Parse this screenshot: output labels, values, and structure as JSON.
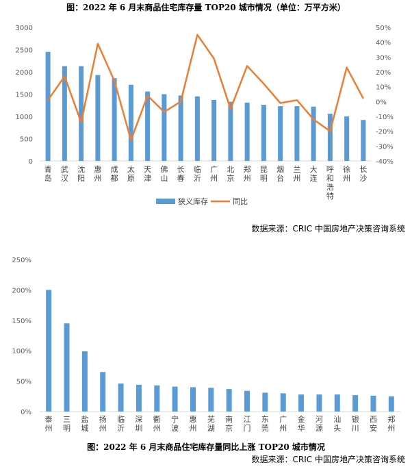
{
  "chart1": {
    "title": "图：2022 年 6 月末商品住宅库存量 TOP20 城市情况（单位：万平方米）",
    "source": "数据来源：CRIC 中国房地产决策咨询系统",
    "colors": {
      "bar": "#5B9BD5",
      "line": "#ED7D31"
    }
  },
  "chart2": {
    "title": "图：2022 年 6 月末商品住宅库存量同比上涨 TOP20 城市情况",
    "source": "数据来源：CRIC 中国房地产决策咨询系统",
    "colors": {
      "bar": "#5B9BD5"
    }
  },
  "chart_data": [
    {
      "type": "bar",
      "categories": [
        "青岛",
        "武汉",
        "沈阳",
        "惠州",
        "成都",
        "太原",
        "天津",
        "佛山",
        "长春",
        "临沂",
        "广州",
        "北京",
        "郑州",
        "昆明",
        "烟台",
        "兰州",
        "大连",
        "呼和浩特",
        "徐州",
        "长沙"
      ],
      "series": [
        {
          "name": "狭义库存",
          "type": "bar",
          "axis": "left",
          "values": [
            2450,
            2130,
            2130,
            1930,
            1860,
            1710,
            1560,
            1500,
            1470,
            1450,
            1370,
            1330,
            1310,
            1260,
            1230,
            1230,
            1220,
            1060,
            1000,
            920
          ]
        },
        {
          "name": "同比",
          "type": "line",
          "axis": "right",
          "values": [
            0.01,
            0.17,
            -0.14,
            0.39,
            0.14,
            -0.26,
            0.04,
            -0.07,
            0.0,
            0.45,
            0.29,
            -0.05,
            0.24,
            0.12,
            -0.01,
            0.01,
            -0.12,
            -0.2,
            0.23,
            0.02
          ]
        }
      ],
      "ylim_left": [
        0,
        3000
      ],
      "yticks_left": [
        "0",
        "500",
        "1000",
        "1500",
        "2000",
        "2500",
        "3000"
      ],
      "ylim_right": [
        -0.4,
        0.5
      ],
      "yticks_right": [
        "-40%",
        "-30%",
        "-20%",
        "-10%",
        "0%",
        "10%",
        "20%",
        "30%",
        "40%",
        "50%"
      ],
      "legend_position": "bottom",
      "grid": false
    },
    {
      "type": "bar",
      "categories": [
        "泰州",
        "三明",
        "盐城",
        "扬州",
        "临沂",
        "深圳",
        "衢州",
        "宁波",
        "惠州",
        "芜湖",
        "南京",
        "江门",
        "东莞",
        "广州",
        "金华",
        "河源",
        "汕头",
        "银川",
        "西安",
        "郑州"
      ],
      "values": [
        2.0,
        1.45,
        0.99,
        0.65,
        0.46,
        0.44,
        0.43,
        0.41,
        0.4,
        0.39,
        0.37,
        0.34,
        0.31,
        0.3,
        0.28,
        0.28,
        0.28,
        0.27,
        0.26,
        0.25
      ],
      "ylim": [
        0,
        2.5
      ],
      "yticks": [
        "0%",
        "50%",
        "100%",
        "150%",
        "200%",
        "250%"
      ],
      "grid": false
    }
  ]
}
